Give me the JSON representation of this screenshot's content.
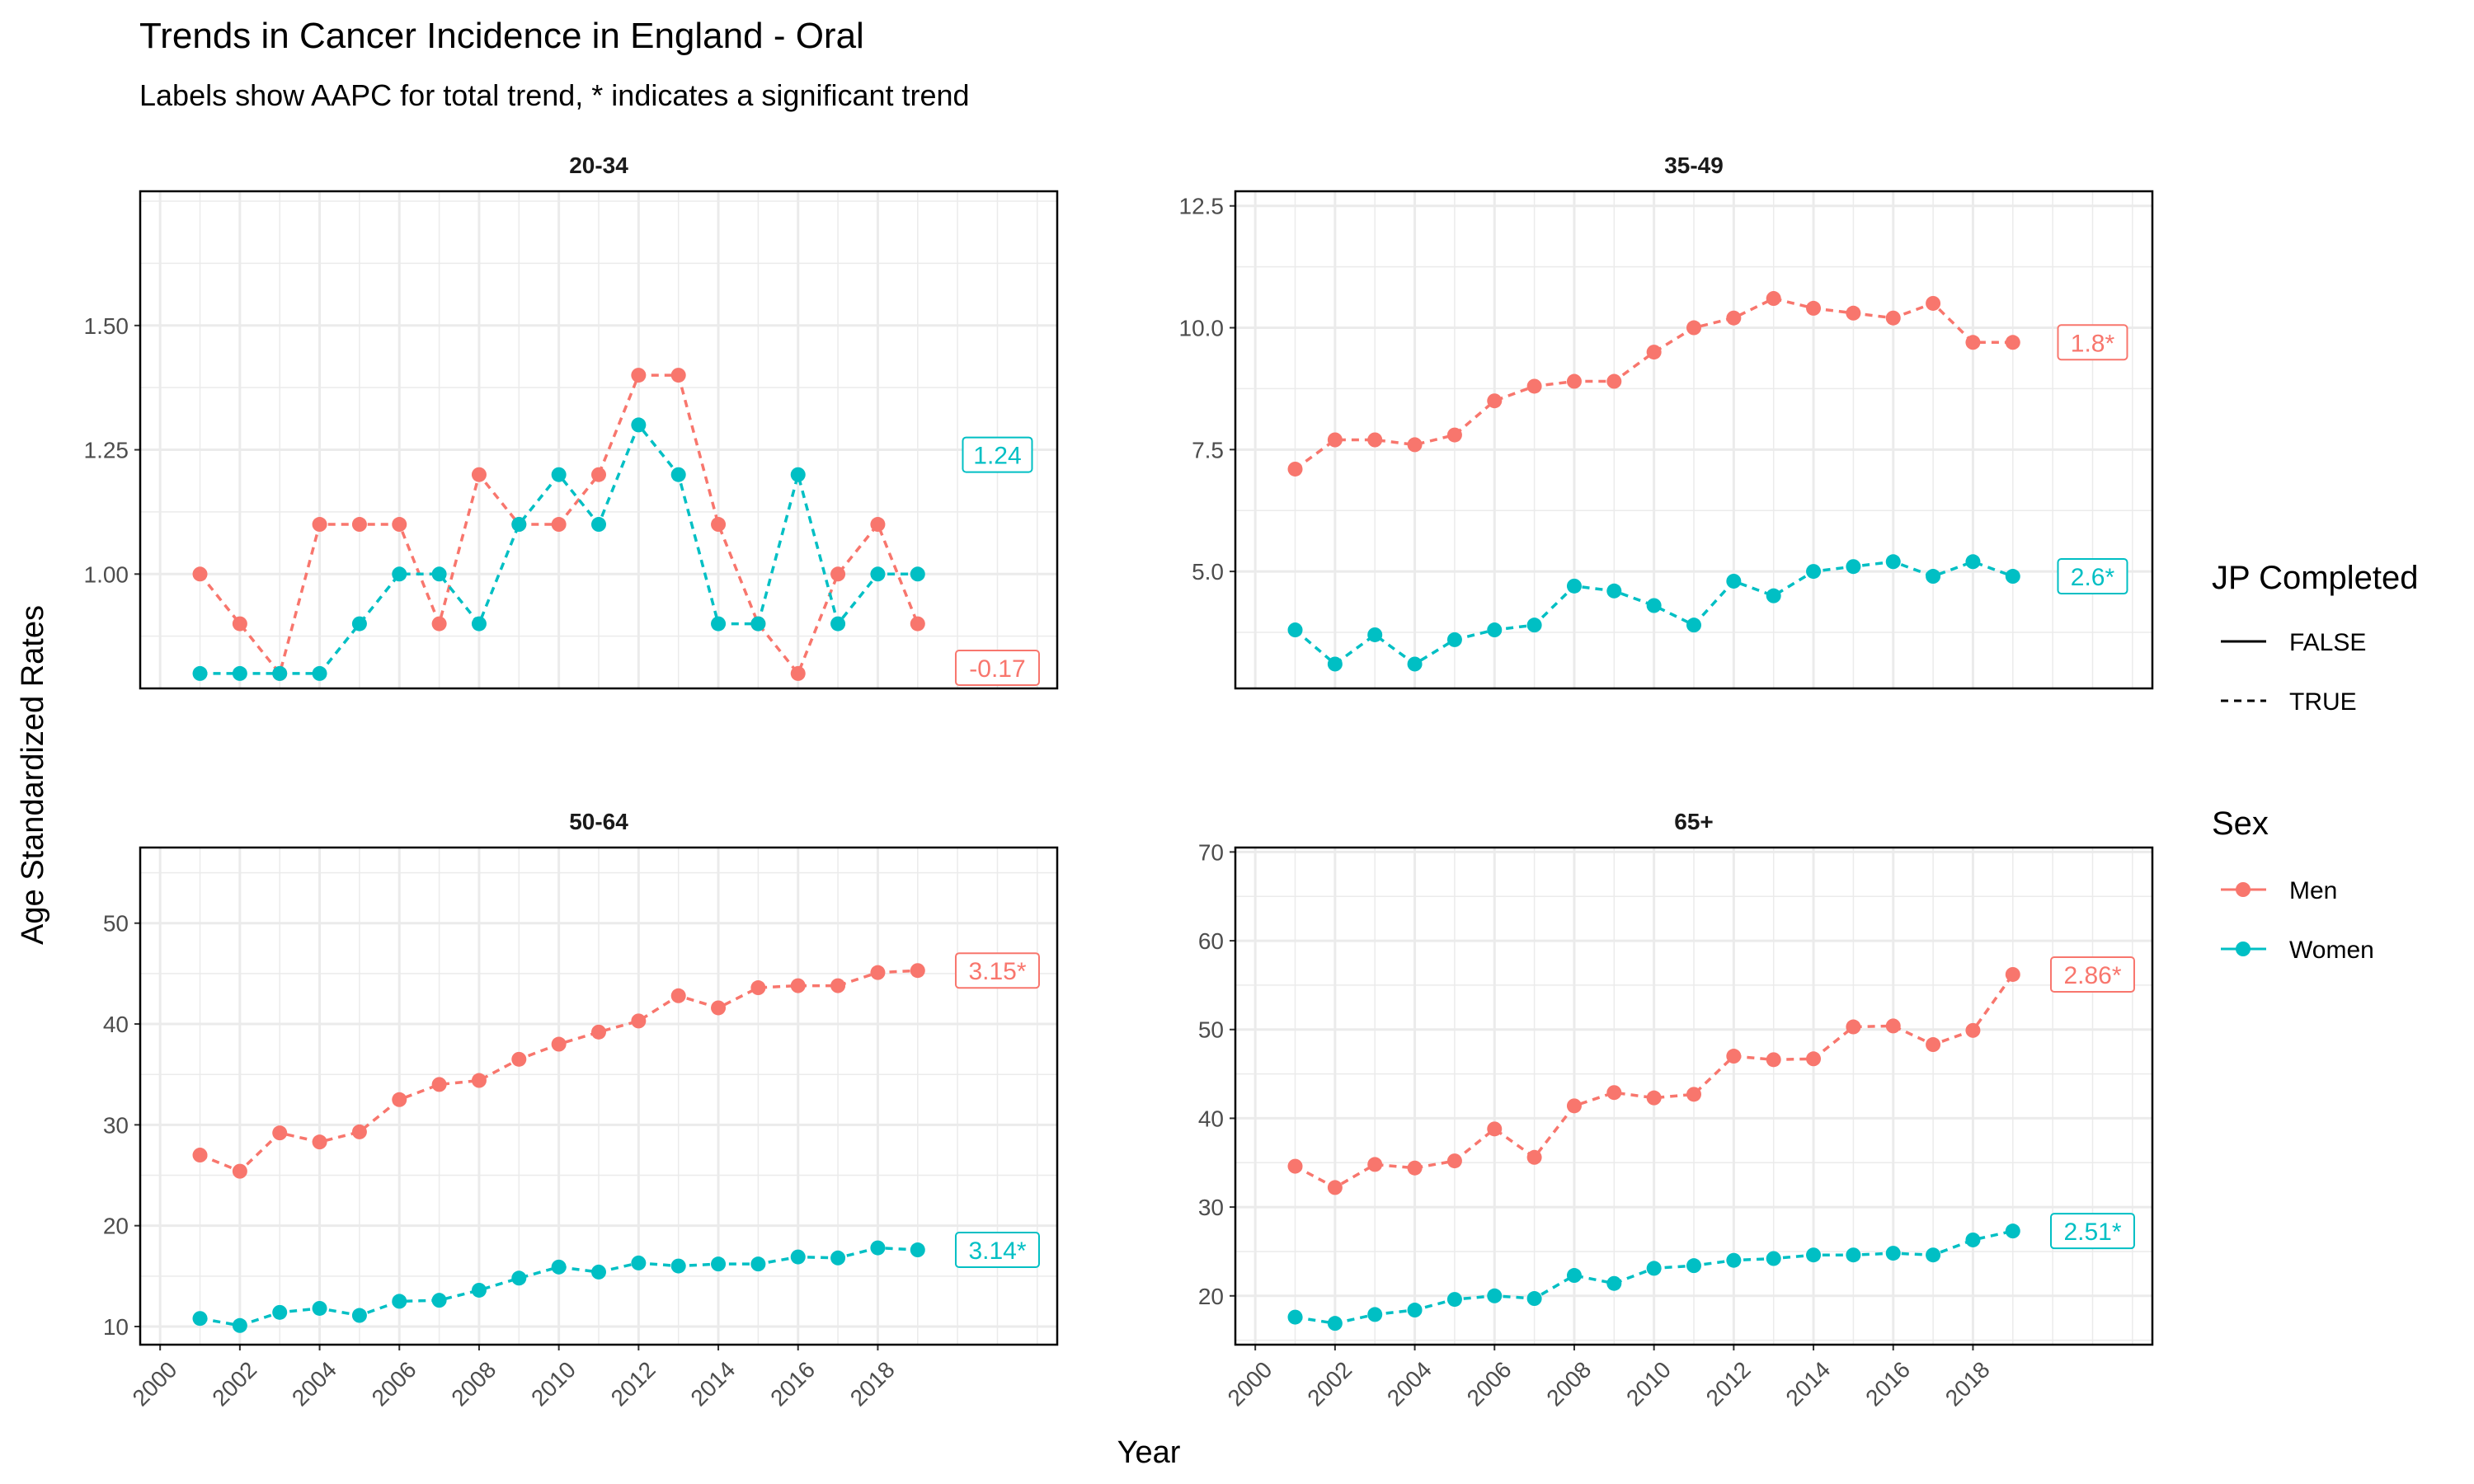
{
  "title": "Trends in Cancer Incidence in England - Oral",
  "subtitle": "Labels show AAPC for total trend, * indicates a significant trend",
  "colors": {
    "men": "#F8766D",
    "women": "#00BFC4"
  },
  "legend": {
    "line_title": "JP Completed",
    "line_items": [
      {
        "label": "FALSE",
        "style": "solid"
      },
      {
        "label": "TRUE",
        "style": "dashed"
      }
    ],
    "sex_title": "Sex",
    "sex_items": [
      {
        "label": "Men",
        "color": "#F8766D"
      },
      {
        "label": "Women",
        "color": "#00BFC4"
      }
    ]
  },
  "chart_data": {
    "type": "line",
    "xlabel": "Year",
    "ylabel": "Age Standardized Rates",
    "x_ticks": [
      "2000",
      "2002",
      "2004",
      "2006",
      "2008",
      "2010",
      "2012",
      "2014",
      "2016",
      "2018"
    ],
    "x_range": [
      1999.5,
      2022.5
    ],
    "x": [
      2001,
      2002,
      2003,
      2004,
      2005,
      2006,
      2007,
      2008,
      2009,
      2010,
      2011,
      2012,
      2013,
      2014,
      2015,
      2016,
      2017,
      2018,
      2019
    ],
    "grid": true,
    "legend_position": "right",
    "panels": [
      {
        "title": "20-34",
        "ylim": [
          0.77,
          1.77
        ],
        "y_ticks": [
          "1.00",
          "1.25",
          "1.50"
        ],
        "series": [
          {
            "name": "Men",
            "line": "TRUE",
            "aapc_label": "-0.17",
            "values": [
              1.0,
              0.9,
              0.8,
              1.1,
              1.1,
              1.1,
              0.9,
              1.2,
              1.1,
              1.1,
              1.2,
              1.4,
              1.4,
              1.1,
              0.9,
              0.8,
              1.0,
              1.1,
              0.9
            ]
          },
          {
            "name": "Women",
            "line": "TRUE",
            "aapc_label": "1.24",
            "values": [
              0.8,
              0.8,
              0.8,
              0.8,
              0.9,
              1.0,
              1.0,
              0.9,
              1.1,
              1.2,
              1.1,
              1.3,
              1.2,
              0.9,
              0.9,
              1.2,
              0.9,
              1.0,
              1.0
            ]
          }
        ]
      },
      {
        "title": "35-49",
        "ylim": [
          2.6,
          12.8
        ],
        "y_ticks": [
          "5.0",
          "7.5",
          "10.0",
          "12.5"
        ],
        "series": [
          {
            "name": "Men",
            "line": "TRUE",
            "aapc_label": "1.8*",
            "values": [
              7.1,
              7.7,
              7.7,
              7.6,
              7.8,
              8.5,
              8.8,
              8.9,
              8.9,
              9.5,
              10.0,
              10.2,
              10.6,
              10.4,
              10.3,
              10.2,
              10.5,
              9.7,
              9.7
            ]
          },
          {
            "name": "Women",
            "line": "TRUE",
            "aapc_label": "2.6*",
            "values": [
              3.8,
              3.1,
              3.7,
              3.1,
              3.6,
              3.8,
              3.9,
              4.7,
              4.6,
              4.3,
              3.9,
              4.8,
              4.5,
              5.0,
              5.1,
              5.2,
              4.9,
              5.2,
              4.9
            ]
          }
        ]
      },
      {
        "title": "50-64",
        "ylim": [
          8.2,
          57.5
        ],
        "y_ticks": [
          "10",
          "20",
          "30",
          "40",
          "50"
        ],
        "series": [
          {
            "name": "Men",
            "line": "TRUE",
            "aapc_label": "3.15*",
            "values": [
              27.0,
              25.4,
              29.2,
              28.3,
              29.3,
              32.5,
              34.0,
              34.4,
              36.5,
              38.0,
              39.2,
              40.3,
              42.8,
              41.6,
              43.6,
              43.8,
              43.8,
              45.1,
              45.3
            ]
          },
          {
            "name": "Women",
            "line": "TRUE",
            "aapc_label": "3.14*",
            "values": [
              10.8,
              10.1,
              11.4,
              11.8,
              11.1,
              12.5,
              12.6,
              13.6,
              14.8,
              15.9,
              15.4,
              16.3,
              16.0,
              16.2,
              16.2,
              16.9,
              16.8,
              17.8,
              17.6
            ]
          }
        ]
      },
      {
        "title": "65+",
        "ylim": [
          14.5,
          70.5
        ],
        "y_ticks": [
          "20",
          "30",
          "40",
          "50",
          "60",
          "70"
        ],
        "series": [
          {
            "name": "Men",
            "line": "TRUE",
            "aapc_label": "2.86*",
            "values": [
              34.6,
              32.2,
              34.8,
              34.4,
              35.2,
              38.8,
              35.6,
              41.4,
              42.9,
              42.3,
              42.7,
              47.0,
              46.6,
              46.7,
              50.3,
              50.4,
              48.3,
              49.9,
              56.2
            ]
          },
          {
            "name": "Women",
            "line": "TRUE",
            "aapc_label": "2.51*",
            "values": [
              17.6,
              16.9,
              17.9,
              18.4,
              19.6,
              20.0,
              19.7,
              22.3,
              21.4,
              23.1,
              23.4,
              24.0,
              24.2,
              24.6,
              24.6,
              24.8,
              24.6,
              26.3,
              27.3
            ]
          }
        ]
      }
    ]
  }
}
